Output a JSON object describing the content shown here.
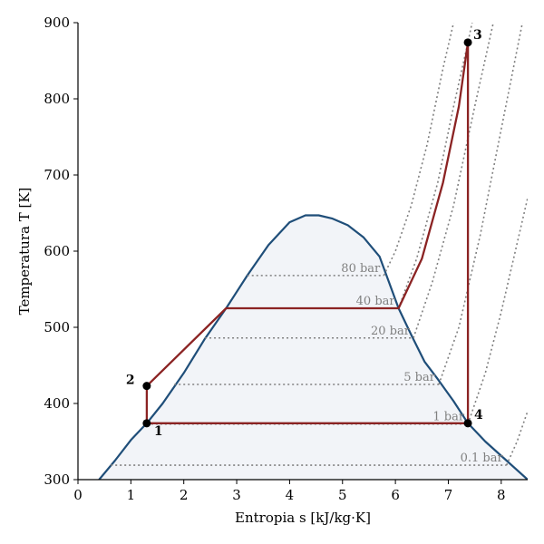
{
  "chart_data": {
    "type": "line",
    "xlabel": "Entropia s [kJ/kg·K]",
    "ylabel": "Temperatura T [K]",
    "xlim": [
      0,
      8.5
    ],
    "ylim": [
      300,
      900
    ],
    "xticks": [
      "0",
      "1",
      "2",
      "3",
      "4",
      "5",
      "6",
      "7",
      "8"
    ],
    "yticks": [
      "300",
      "400",
      "500",
      "600",
      "700",
      "800",
      "900"
    ],
    "grid": false,
    "colors": {
      "dome": "#1f4e79",
      "dome_fill": "#f2f4f8",
      "cycle": "#8b2323",
      "isobar": "#808080",
      "point": "#000000"
    },
    "saturation_dome": [
      {
        "s": 0.4,
        "T": 300
      },
      {
        "s": 0.7,
        "T": 325
      },
      {
        "s": 1.0,
        "T": 352
      },
      {
        "s": 1.3,
        "T": 374
      },
      {
        "s": 1.6,
        "T": 400
      },
      {
        "s": 2.0,
        "T": 440
      },
      {
        "s": 2.4,
        "T": 485
      },
      {
        "s": 2.8,
        "T": 525
      },
      {
        "s": 3.2,
        "T": 568
      },
      {
        "s": 3.6,
        "T": 608
      },
      {
        "s": 4.0,
        "T": 638
      },
      {
        "s": 4.3,
        "T": 647
      },
      {
        "s": 4.55,
        "T": 647
      },
      {
        "s": 4.8,
        "T": 643
      },
      {
        "s": 5.1,
        "T": 634
      },
      {
        "s": 5.4,
        "T": 618
      },
      {
        "s": 5.7,
        "T": 593
      },
      {
        "s": 6.06,
        "T": 525
      },
      {
        "s": 6.3,
        "T": 490
      },
      {
        "s": 6.55,
        "T": 455
      },
      {
        "s": 6.8,
        "T": 432
      },
      {
        "s": 7.1,
        "T": 403
      },
      {
        "s": 7.37,
        "T": 374
      },
      {
        "s": 7.7,
        "T": 350
      },
      {
        "s": 8.1,
        "T": 325
      },
      {
        "s": 8.5,
        "T": 300
      }
    ],
    "isobars": [
      {
        "label": "80 bar",
        "T_sat": 568,
        "s_liq": 3.2,
        "s_vap": 5.78,
        "superheat": [
          {
            "s": 5.78,
            "T": 568
          },
          {
            "s": 6.0,
            "T": 600
          },
          {
            "s": 6.3,
            "T": 660
          },
          {
            "s": 6.6,
            "T": 740
          },
          {
            "s": 6.9,
            "T": 840
          },
          {
            "s": 7.1,
            "T": 900
          }
        ]
      },
      {
        "label": "40 bar",
        "T_sat": 525,
        "s_liq": 2.8,
        "s_vap": 6.06,
        "superheat": [
          {
            "s": 6.06,
            "T": 525
          },
          {
            "s": 6.4,
            "T": 590
          },
          {
            "s": 6.8,
            "T": 690
          },
          {
            "s": 7.1,
            "T": 790
          },
          {
            "s": 7.37,
            "T": 874
          },
          {
            "s": 7.45,
            "T": 900
          }
        ]
      },
      {
        "label": "20 bar",
        "T_sat": 486,
        "s_liq": 2.4,
        "s_vap": 6.34,
        "superheat": [
          {
            "s": 6.34,
            "T": 486
          },
          {
            "s": 6.7,
            "T": 560
          },
          {
            "s": 7.1,
            "T": 660
          },
          {
            "s": 7.5,
            "T": 790
          },
          {
            "s": 7.85,
            "T": 900
          }
        ]
      },
      {
        "label": "5 bar",
        "T_sat": 425,
        "s_liq": 1.82,
        "s_vap": 6.82,
        "superheat": [
          {
            "s": 6.82,
            "T": 425
          },
          {
            "s": 7.2,
            "T": 500
          },
          {
            "s": 7.6,
            "T": 620
          },
          {
            "s": 8.0,
            "T": 760
          },
          {
            "s": 8.4,
            "T": 900
          }
        ]
      },
      {
        "label": "1 bar",
        "T_sat": 373,
        "s_liq": 1.3,
        "s_vap": 7.37,
        "superheat": [
          {
            "s": 7.37,
            "T": 373
          },
          {
            "s": 7.7,
            "T": 440
          },
          {
            "s": 8.0,
            "T": 520
          },
          {
            "s": 8.3,
            "T": 610
          },
          {
            "s": 8.5,
            "T": 670
          }
        ]
      },
      {
        "label": "0.1 bar",
        "T_sat": 319,
        "s_liq": 0.62,
        "s_vap": 8.1,
        "superheat": [
          {
            "s": 8.1,
            "T": 319
          },
          {
            "s": 8.3,
            "T": 350
          },
          {
            "s": 8.5,
            "T": 390
          }
        ]
      }
    ],
    "cycle": [
      {
        "s": 1.3,
        "T": 374
      },
      {
        "s": 1.3,
        "T": 423
      },
      {
        "s": 2.8,
        "T": 525
      },
      {
        "s": 6.06,
        "T": 525
      },
      {
        "s": 6.5,
        "T": 590
      },
      {
        "s": 6.9,
        "T": 690
      },
      {
        "s": 7.2,
        "T": 790
      },
      {
        "s": 7.37,
        "T": 874
      },
      {
        "s": 7.37,
        "T": 374
      },
      {
        "s": 1.3,
        "T": 374
      }
    ],
    "points": [
      {
        "label": "1",
        "s": 1.3,
        "T": 374
      },
      {
        "label": "2",
        "s": 1.3,
        "T": 423
      },
      {
        "label": "3",
        "s": 7.37,
        "T": 874
      },
      {
        "label": "4",
        "s": 7.37,
        "T": 374
      }
    ]
  }
}
